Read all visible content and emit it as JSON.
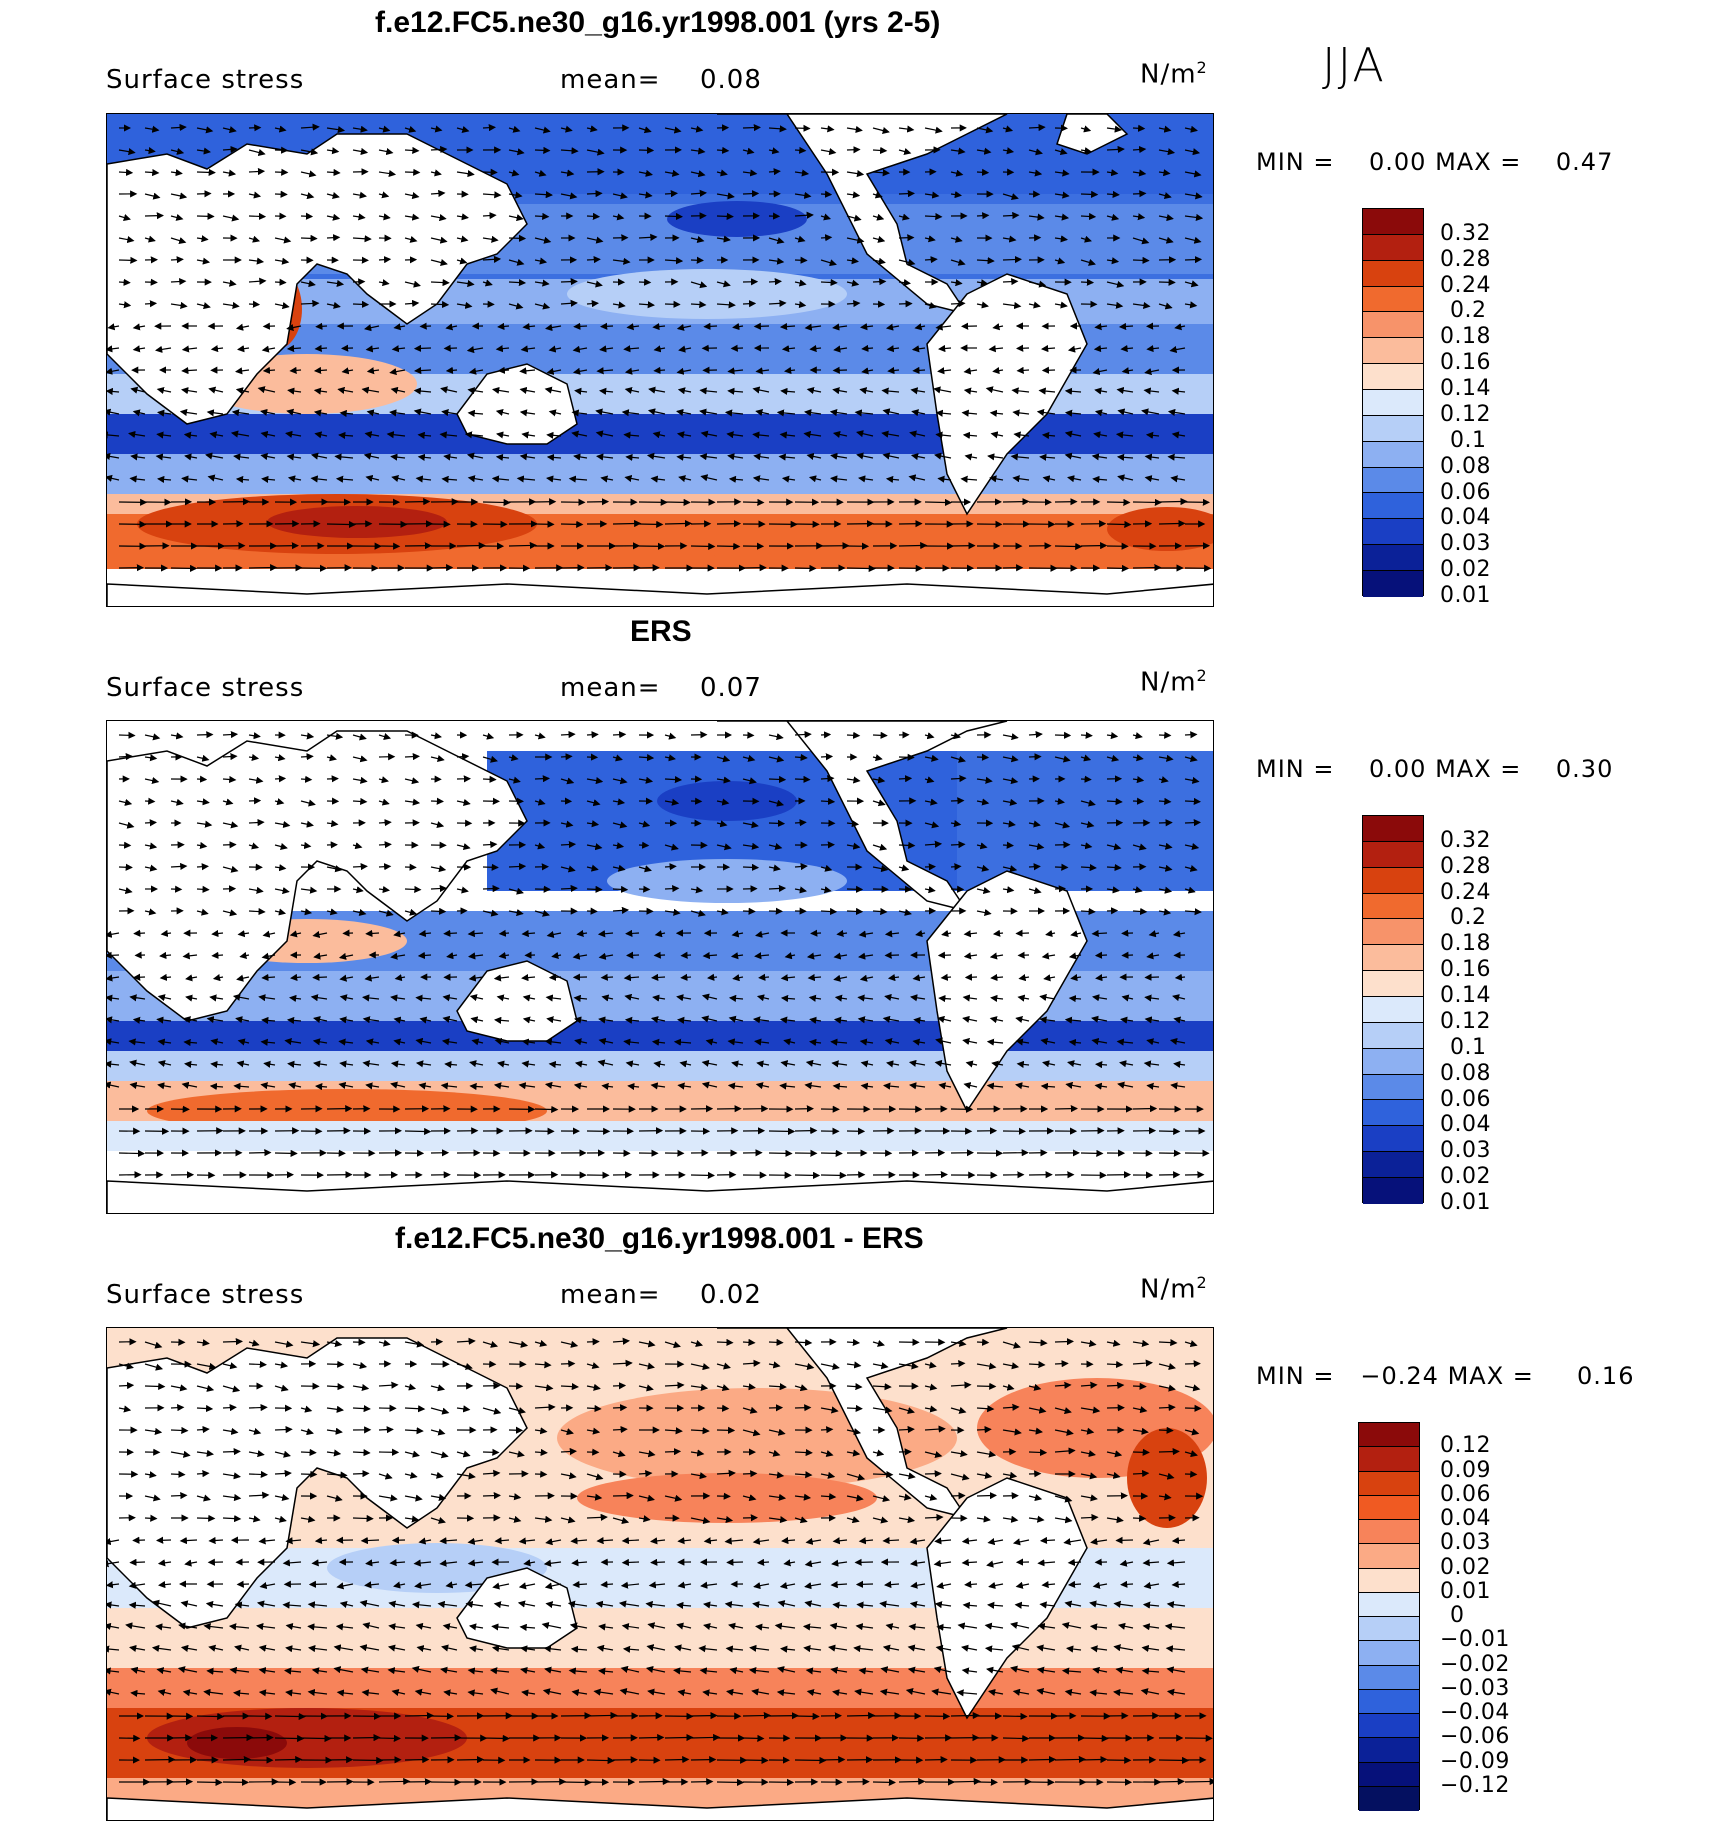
{
  "season": "JJA",
  "units_base": "N/m",
  "units_sup": "2",
  "panels": [
    {
      "title": "f.e12.FC5.ne30_g16.yr1998.001 (yrs 2-5)",
      "field": "Surface stress",
      "mean_label": "mean=",
      "mean": "0.08",
      "min_label": "MIN =",
      "min": "0.00",
      "max_label": "MAX =",
      "max": "0.47",
      "colorbar": {
        "colors": [
          "#8b0a0a",
          "#b32010",
          "#d8420f",
          "#f06a2e",
          "#f7936a",
          "#fbbc9c",
          "#fde0cc",
          "#dbe9fb",
          "#b6cff7",
          "#8db0f2",
          "#5b8ae8",
          "#2f62dc",
          "#1a3fc4",
          "#0b2198",
          "#06117a"
        ],
        "ticks": [
          "0.32",
          "0.28",
          "0.24",
          "0.2",
          "0.18",
          "0.16",
          "0.14",
          "0.12",
          "0.1",
          "0.08",
          "0.06",
          "0.04",
          "0.03",
          "0.02",
          "0.01"
        ]
      }
    },
    {
      "title": "ERS",
      "field": "Surface stress",
      "mean_label": "mean=",
      "mean": "0.07",
      "min_label": "MIN =",
      "min": "0.00",
      "max_label": "MAX =",
      "max": "0.30",
      "colorbar": {
        "colors": [
          "#8b0a0a",
          "#b32010",
          "#d8420f",
          "#f06a2e",
          "#f7936a",
          "#fbbc9c",
          "#fde0cc",
          "#dbe9fb",
          "#b6cff7",
          "#8db0f2",
          "#5b8ae8",
          "#2f62dc",
          "#1a3fc4",
          "#0b2198",
          "#06117a"
        ],
        "ticks": [
          "0.32",
          "0.28",
          "0.24",
          "0.2",
          "0.18",
          "0.16",
          "0.14",
          "0.12",
          "0.1",
          "0.08",
          "0.06",
          "0.04",
          "0.03",
          "0.02",
          "0.01"
        ]
      }
    },
    {
      "title": "f.e12.FC5.ne30_g16.yr1998.001 - ERS",
      "field": "Surface stress",
      "mean_label": "mean=",
      "mean": "0.02",
      "min_label": "MIN =",
      "min": "−0.24",
      "max_label": "MAX =",
      "max": "0.16",
      "colorbar": {
        "colors": [
          "#8b0a0a",
          "#b32010",
          "#d8420f",
          "#f05a22",
          "#f7835a",
          "#fbaa85",
          "#fde0cc",
          "#dbe9fb",
          "#b6cff7",
          "#8db0f2",
          "#5b8ae8",
          "#2f62dc",
          "#1a3fc4",
          "#0b2198",
          "#06117a",
          "#041060"
        ],
        "ticks": [
          "0.12",
          "0.09",
          "0.06",
          "0.04",
          "0.03",
          "0.02",
          "0.01",
          "0",
          "−0.01",
          "−0.02",
          "−0.03",
          "−0.04",
          "−0.06",
          "−0.09",
          "−0.12"
        ]
      }
    }
  ]
}
